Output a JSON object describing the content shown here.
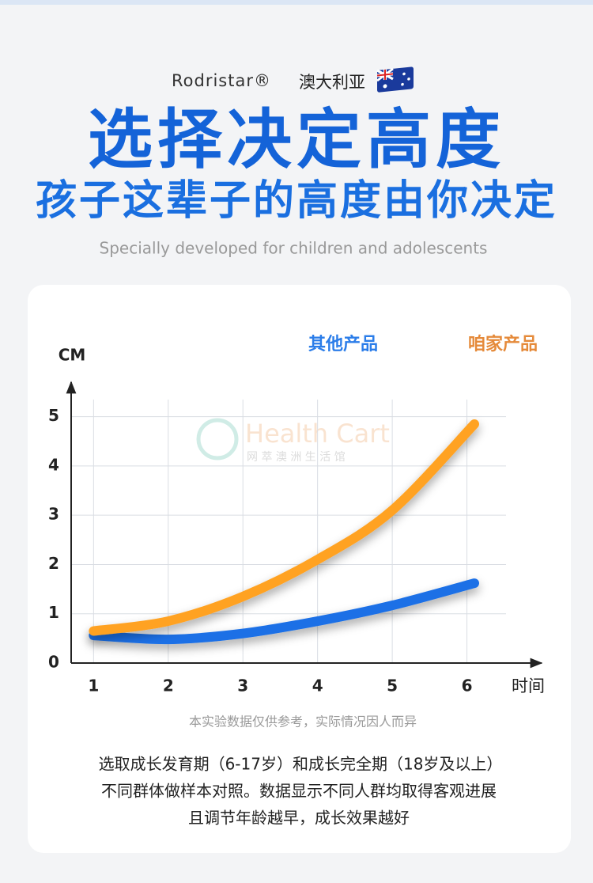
{
  "brand": "Rodristar®",
  "origin": "澳大利亚",
  "title": "选择决定高度",
  "subtitle": "孩子这辈子的高度由你决定",
  "tagline": "Specially developed for children and adolescents",
  "watermark": {
    "name": "Health Cart",
    "sub": "网 萃 澳 洲 生 活 馆"
  },
  "chart_data": {
    "type": "line",
    "y_label": "CM",
    "x_label": "时间",
    "x": [
      1,
      2,
      3,
      4,
      5,
      6.1
    ],
    "series": [
      {
        "name": "其他产品",
        "color": "#1a6fe6",
        "values": [
          0.56,
          0.48,
          0.6,
          0.85,
          1.17,
          1.62
        ]
      },
      {
        "name": "咱家产品",
        "color": "#ffa223",
        "values": [
          0.65,
          0.85,
          1.35,
          2.1,
          3.1,
          4.85
        ]
      }
    ],
    "xlim": [
      0.7,
      7
    ],
    "ylim": [
      0,
      5.7
    ],
    "xticks": [
      1,
      2,
      3,
      4,
      5,
      6
    ],
    "yticks": [
      0,
      1,
      2,
      3,
      4,
      5
    ],
    "grid": true,
    "legend": "top-right"
  },
  "note": "本实验数据仅供参考，实际情况因人而异",
  "description": [
    "选取成长发育期（6-17岁）和成长完全期（18岁及以上）",
    "不同群体做样本对照。数据显示不同人群均取得客观进展",
    "且调节年龄越早，成长效果越好"
  ]
}
